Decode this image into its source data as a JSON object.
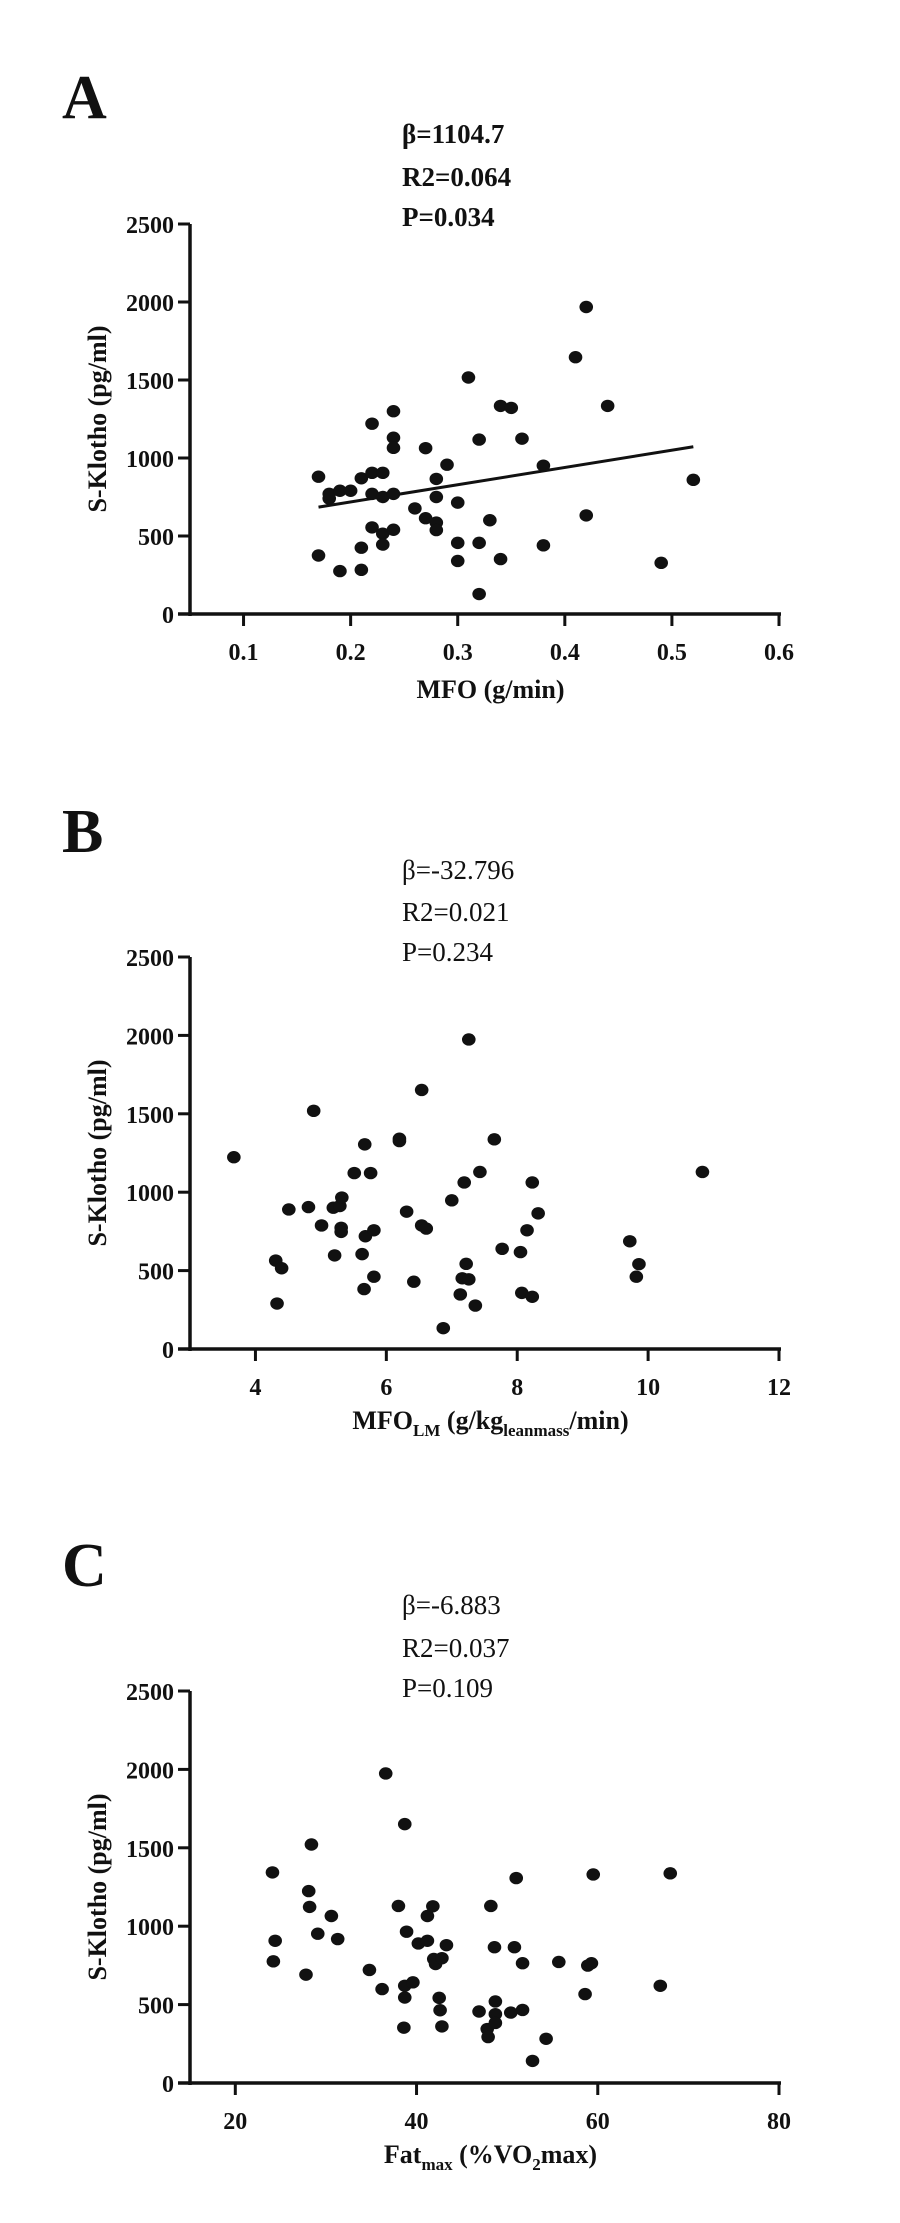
{
  "chart_data": [
    {
      "type": "scatter",
      "panel_label": "A",
      "stats": [
        "β=1104.7",
        "R2=0.064",
        "P=0.034"
      ],
      "stats_bold": true,
      "xlabel": "MFO (g/min)",
      "ylabel": "S-Klotho (pg/ml)",
      "xlim": [
        0.05,
        0.6
      ],
      "ylim": [
        0,
        2500
      ],
      "xticks": [
        0.1,
        0.2,
        0.3,
        0.4,
        0.5,
        0.6
      ],
      "yticks": [
        0,
        500,
        1000,
        1500,
        2000,
        2500
      ],
      "regression_line": {
        "x": [
          0.17,
          0.52
        ],
        "y": [
          685,
          1072
        ]
      },
      "points": [
        [
          0.17,
          880
        ],
        [
          0.18,
          740
        ],
        [
          0.18,
          770
        ],
        [
          0.19,
          790
        ],
        [
          0.2,
          790
        ],
        [
          0.19,
          275
        ],
        [
          0.17,
          375
        ],
        [
          0.21,
          870
        ],
        [
          0.21,
          425
        ],
        [
          0.21,
          283
        ],
        [
          0.22,
          1220
        ],
        [
          0.22,
          905
        ],
        [
          0.22,
          770
        ],
        [
          0.22,
          555
        ],
        [
          0.23,
          905
        ],
        [
          0.23,
          750
        ],
        [
          0.23,
          515
        ],
        [
          0.23,
          445
        ],
        [
          0.24,
          1300
        ],
        [
          0.24,
          1130
        ],
        [
          0.24,
          1065
        ],
        [
          0.24,
          770
        ],
        [
          0.24,
          540
        ],
        [
          0.26,
          677
        ],
        [
          0.27,
          1063
        ],
        [
          0.27,
          614
        ],
        [
          0.28,
          866
        ],
        [
          0.28,
          750
        ],
        [
          0.28,
          586
        ],
        [
          0.28,
          538
        ],
        [
          0.29,
          957
        ],
        [
          0.3,
          714
        ],
        [
          0.3,
          456
        ],
        [
          0.3,
          340
        ],
        [
          0.31,
          1516
        ],
        [
          0.32,
          1118
        ],
        [
          0.32,
          456
        ],
        [
          0.32,
          128
        ],
        [
          0.33,
          601
        ],
        [
          0.34,
          1334
        ],
        [
          0.34,
          352
        ],
        [
          0.35,
          1321
        ],
        [
          0.36,
          1124
        ],
        [
          0.38,
          951
        ],
        [
          0.38,
          440
        ],
        [
          0.41,
          1646
        ],
        [
          0.42,
          1968
        ],
        [
          0.42,
          632
        ],
        [
          0.44,
          1334
        ],
        [
          0.49,
          328
        ],
        [
          0.52,
          860
        ]
      ]
    },
    {
      "type": "scatter",
      "panel_label": "B",
      "stats": [
        "β=-32.796",
        "R2=0.021",
        "P=0.234"
      ],
      "stats_bold": false,
      "xlabel": "MFOLM (g/kgleanmass/min)",
      "xlabel_parts": [
        "MFO",
        "LM",
        " (g/kg",
        "leanmass",
        "/min)"
      ],
      "ylabel": "S-Klotho (pg/ml)",
      "xlim": [
        3,
        12
      ],
      "ylim": [
        0,
        2500
      ],
      "xticks": [
        4,
        6,
        8,
        10,
        12
      ],
      "yticks": [
        0,
        500,
        1000,
        1500,
        2000,
        2500
      ],
      "points": [
        [
          3.67,
          1223
        ],
        [
          4.31,
          564
        ],
        [
          4.4,
          515
        ],
        [
          4.33,
          290
        ],
        [
          4.51,
          890
        ],
        [
          4.81,
          905
        ],
        [
          4.89,
          1519
        ],
        [
          5.01,
          788
        ],
        [
          5.19,
          901
        ],
        [
          5.29,
          912
        ],
        [
          5.32,
          966
        ],
        [
          5.31,
          773
        ],
        [
          5.31,
          747
        ],
        [
          5.21,
          597
        ],
        [
          5.51,
          1122
        ],
        [
          5.63,
          605
        ],
        [
          5.66,
          382
        ],
        [
          5.67,
          1305
        ],
        [
          5.68,
          719
        ],
        [
          5.76,
          1122
        ],
        [
          5.81,
          757
        ],
        [
          5.81,
          461
        ],
        [
          6.2,
          1341
        ],
        [
          6.2,
          1326
        ],
        [
          6.31,
          876
        ],
        [
          6.42,
          429
        ],
        [
          6.54,
          1652
        ],
        [
          6.54,
          788
        ],
        [
          6.61,
          768
        ],
        [
          6.87,
          133
        ],
        [
          7.0,
          948
        ],
        [
          7.13,
          348
        ],
        [
          7.16,
          451
        ],
        [
          7.26,
          444
        ],
        [
          7.19,
          1062
        ],
        [
          7.22,
          543
        ],
        [
          7.26,
          1974
        ],
        [
          7.36,
          277
        ],
        [
          7.43,
          1129
        ],
        [
          7.65,
          1337
        ],
        [
          7.77,
          639
        ],
        [
          8.05,
          618
        ],
        [
          8.07,
          358
        ],
        [
          8.15,
          757
        ],
        [
          8.23,
          1062
        ],
        [
          8.23,
          333
        ],
        [
          8.32,
          865
        ],
        [
          9.72,
          687
        ],
        [
          9.82,
          461
        ],
        [
          9.86,
          541
        ],
        [
          10.83,
          1129
        ]
      ]
    },
    {
      "type": "scatter",
      "panel_label": "C",
      "stats": [
        "β=-6.883",
        "R2=0.037",
        "P=0.109"
      ],
      "stats_bold": false,
      "xlabel": "Fatmax (%VO2max)",
      "xlabel_parts": [
        "Fat",
        "max",
        "  (%VO",
        "2",
        "max)"
      ],
      "ylabel": "S-Klotho (pg/ml)",
      "xlim": [
        15,
        80
      ],
      "ylim": [
        0,
        2500
      ],
      "xticks": [
        20,
        40,
        60,
        80
      ],
      "yticks": [
        0,
        500,
        1000,
        1500,
        2000,
        2500
      ],
      "points": [
        [
          24.1,
          1343
        ],
        [
          24.4,
          907
        ],
        [
          24.2,
          776
        ],
        [
          27.8,
          691
        ],
        [
          28.1,
          1224
        ],
        [
          28.2,
          1123
        ],
        [
          28.4,
          1521
        ],
        [
          29.1,
          952
        ],
        [
          30.6,
          1065
        ],
        [
          31.3,
          918
        ],
        [
          34.8,
          721
        ],
        [
          36.2,
          599
        ],
        [
          36.6,
          1974
        ],
        [
          38.0,
          1129
        ],
        [
          38.7,
          1651
        ],
        [
          38.9,
          965
        ],
        [
          38.7,
          620
        ],
        [
          38.7,
          545
        ],
        [
          38.6,
          353
        ],
        [
          39.6,
          642
        ],
        [
          40.2,
          890
        ],
        [
          41.2,
          907
        ],
        [
          41.2,
          1065
        ],
        [
          41.8,
          1127
        ],
        [
          41.9,
          791
        ],
        [
          42.1,
          759
        ],
        [
          42.8,
          796
        ],
        [
          42.5,
          543
        ],
        [
          42.6,
          464
        ],
        [
          42.8,
          361
        ],
        [
          43.3,
          879
        ],
        [
          46.9,
          456
        ],
        [
          47.8,
          344
        ],
        [
          47.9,
          293
        ],
        [
          48.2,
          1129
        ],
        [
          48.6,
          866
        ],
        [
          48.7,
          520
        ],
        [
          48.7,
          439
        ],
        [
          48.7,
          383
        ],
        [
          50.4,
          449
        ],
        [
          50.8,
          866
        ],
        [
          51.0,
          1307
        ],
        [
          51.7,
          764
        ],
        [
          51.7,
          466
        ],
        [
          52.8,
          141
        ],
        [
          54.3,
          282
        ],
        [
          55.7,
          772
        ],
        [
          58.6,
          567
        ],
        [
          58.9,
          749
        ],
        [
          59.3,
          764
        ],
        [
          59.5,
          1330
        ],
        [
          66.9,
          620
        ],
        [
          68.0,
          1337
        ]
      ]
    }
  ],
  "colors": {
    "points": "#111111",
    "axes": "#111111",
    "background": "#ffffff"
  }
}
